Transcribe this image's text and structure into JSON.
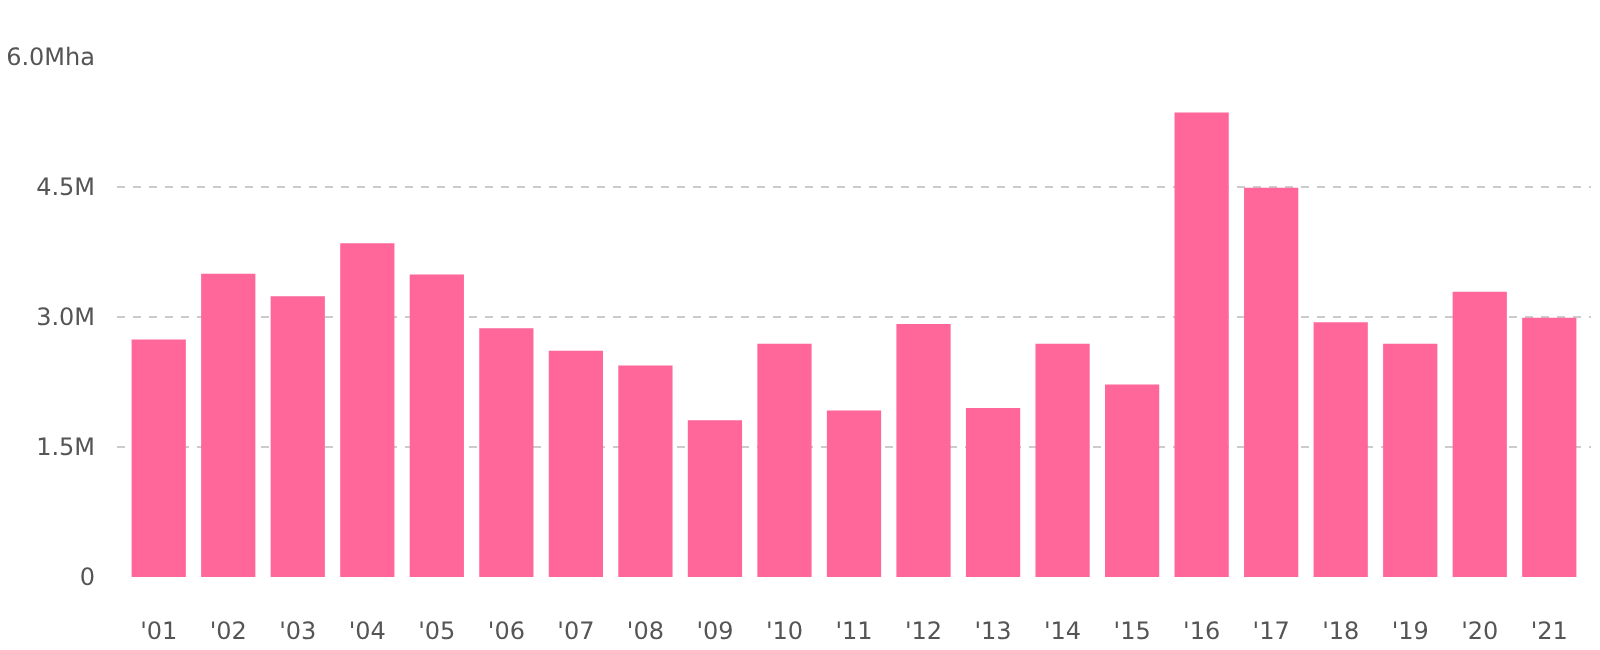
{
  "chart_data": {
    "type": "bar",
    "categories": [
      "'01",
      "'02",
      "'03",
      "'04",
      "'05",
      "'06",
      "'07",
      "'08",
      "'09",
      "'10",
      "'11",
      "'12",
      "'13",
      "'14",
      "'15",
      "'16",
      "'17",
      "'18",
      "'19",
      "'20",
      "'21"
    ],
    "values": [
      2.74,
      3.5,
      3.24,
      3.85,
      3.49,
      2.87,
      2.61,
      2.44,
      1.81,
      2.69,
      1.92,
      2.92,
      1.95,
      2.69,
      2.22,
      5.36,
      4.49,
      2.94,
      2.69,
      3.29,
      2.99
    ],
    "color": "#ff6699",
    "ylim": [
      0,
      6.0
    ],
    "yticks": [
      0,
      {
        "value": 1.5,
        "label": "1.5M"
      },
      {
        "value": 3.0,
        "label": "3.0M"
      },
      {
        "value": 4.5,
        "label": "4.5M"
      },
      {
        "value": 6.0,
        "label": "6.0Mha"
      }
    ],
    "grid": "y"
  }
}
